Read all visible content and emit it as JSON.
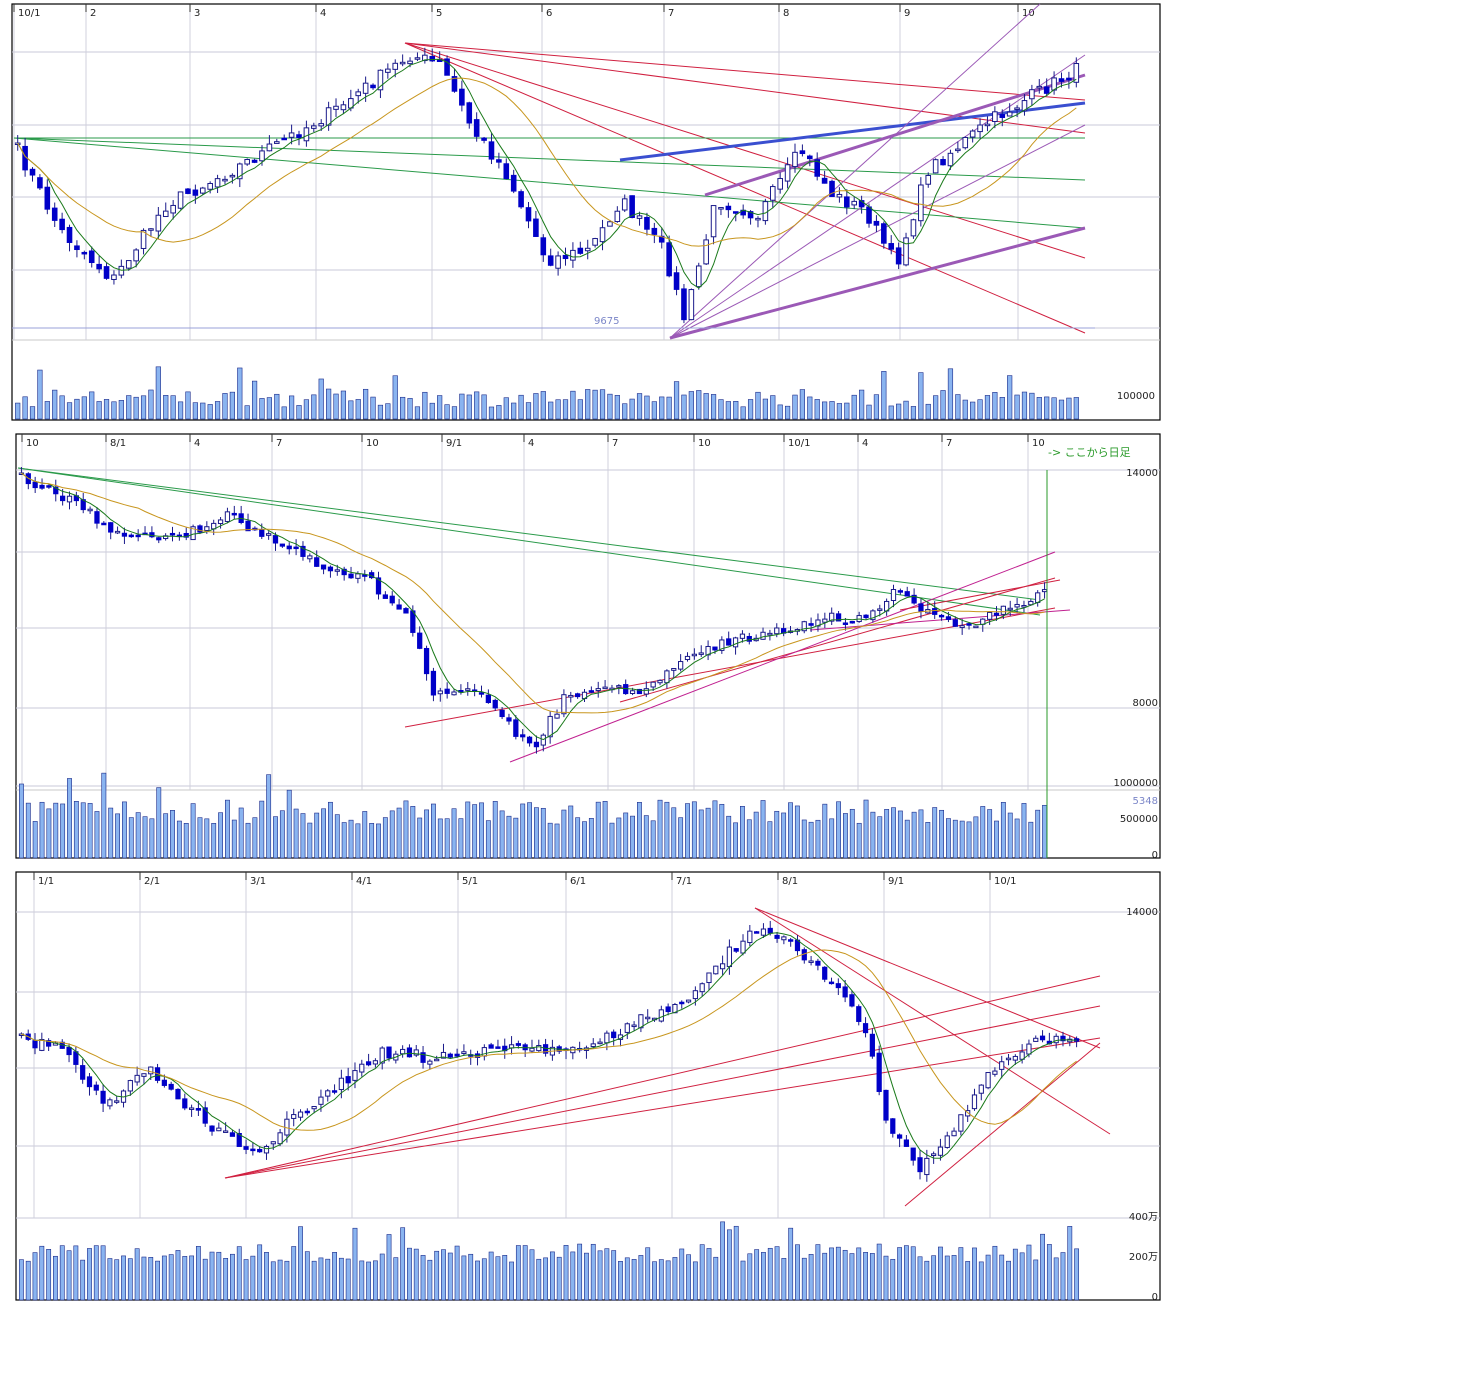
{
  "chart_data": [
    {
      "type": "candlestick",
      "x_tick_labels": [
        "10/1",
        "2",
        "3",
        "4",
        "5",
        "6",
        "7",
        "8",
        "9",
        "10"
      ],
      "y_tick_labels": [],
      "annotations": [
        "9675"
      ],
      "volume_axis_labels": [
        "100000"
      ],
      "colors": {
        "up": "#ffffff",
        "down": "#0000c8",
        "volume": "#8ab4f0",
        "ma_short": "#1a7a1a",
        "ma_long": "#c8961e",
        "trend_red": "#d02040",
        "trend_purple": "#9b59b6",
        "trend_blue": "#3a4fd0",
        "trend_green": "#2a9a4a"
      }
    },
    {
      "type": "candlestick",
      "x_tick_labels": [
        "10",
        "8/1",
        "4",
        "7",
        "10",
        "9/1",
        "4",
        "7",
        "10",
        "10/1",
        "4",
        "7",
        "10"
      ],
      "y_tick_labels": [
        "14000",
        "8000"
      ],
      "annotations": [
        "-> ここから日足"
      ],
      "volume_axis_labels": [
        "1000000",
        "5348",
        "500000",
        "0"
      ],
      "colors": {
        "up": "#ffffff",
        "down": "#0000c8",
        "volume": "#8ab4f0",
        "ma_short": "#1a7a1a",
        "ma_long": "#c8961e",
        "trend_red": "#d02040",
        "trend_purple": "#c02090",
        "trend_green": "#2a9a4a",
        "note": "#2a9a2a"
      }
    },
    {
      "type": "candlestick",
      "x_tick_labels": [
        "1/1",
        "2/1",
        "3/1",
        "4/1",
        "5/1",
        "6/1",
        "7/1",
        "8/1",
        "9/1",
        "10/1"
      ],
      "y_tick_labels": [
        "14000"
      ],
      "annotations": [],
      "volume_axis_labels": [
        "400万",
        "200万",
        "0"
      ],
      "colors": {
        "up": "#ffffff",
        "down": "#0000c8",
        "volume": "#8ab4f0",
        "ma_short": "#1a7a1a",
        "ma_long": "#c8961e",
        "trend_red": "#d02040"
      }
    }
  ]
}
